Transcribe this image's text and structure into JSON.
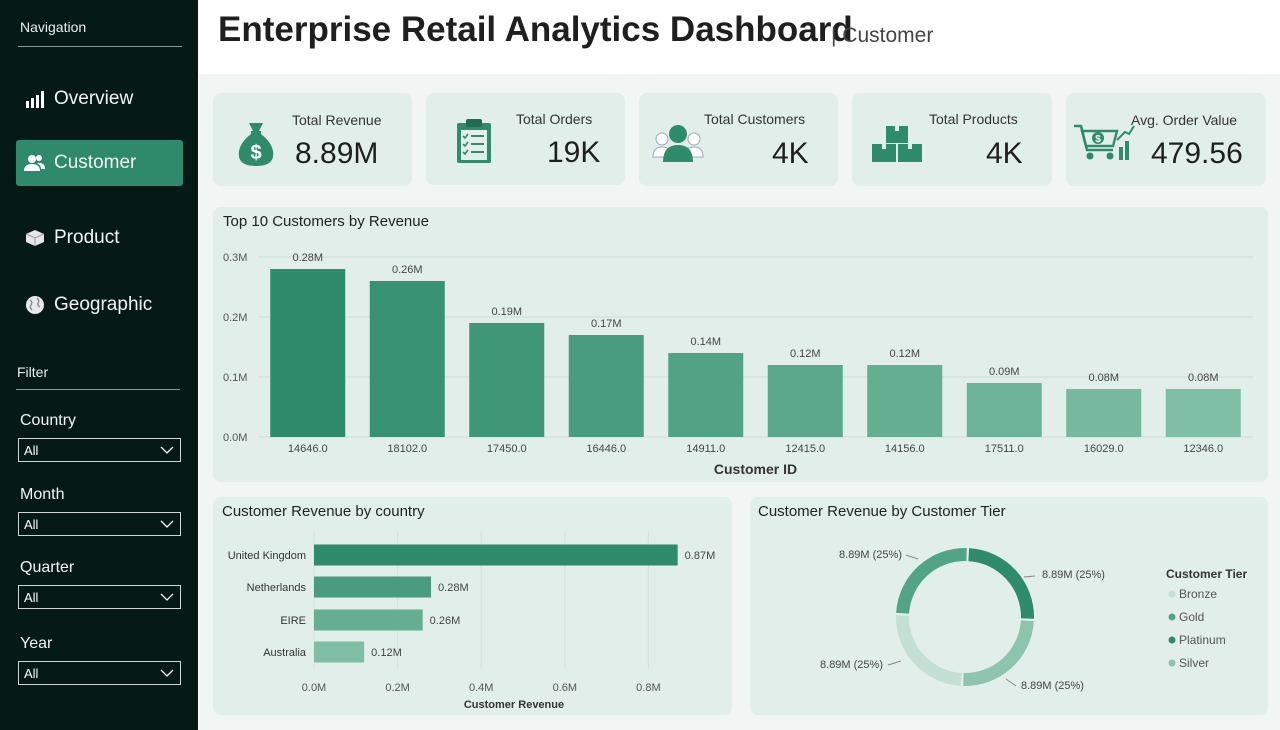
{
  "sidebar": {
    "nav_header": "Navigation",
    "nav_items": [
      {
        "label": "Overview",
        "icon": "bar-chart-icon",
        "active": false
      },
      {
        "label": "Customer",
        "icon": "users-icon",
        "active": true
      },
      {
        "label": "Product",
        "icon": "box-icon",
        "active": false
      },
      {
        "label": "Geographic",
        "icon": "globe-icon",
        "active": false
      }
    ],
    "filter_header": "Filter",
    "slicers": [
      {
        "label": "Country",
        "value": "All"
      },
      {
        "label": "Month",
        "value": "All"
      },
      {
        "label": "Quarter",
        "value": "All"
      },
      {
        "label": "Year",
        "value": "All"
      }
    ]
  },
  "header": {
    "title": "Enterprise Retail Analytics Dashboard",
    "subtitle": "| Customer"
  },
  "kpis": [
    {
      "label": "Total Revenue",
      "value": "8.89M",
      "icon": "money-bag-icon"
    },
    {
      "label": "Total Orders",
      "value": "19K",
      "icon": "clipboard-checklist-icon"
    },
    {
      "label": "Total Customers",
      "value": "4K",
      "icon": "customers-icon"
    },
    {
      "label": "Total Products",
      "value": "4K",
      "icon": "boxes-icon"
    },
    {
      "label": "Avg. Order Value",
      "value": "479.56",
      "icon": "cart-growth-icon"
    }
  ],
  "colors": {
    "sidebar_bg": "#061a15",
    "accent": "#2f8a6c",
    "card_bg": "#e2eeea",
    "dark_green": "#2e8b6b",
    "light_green": "#a8d5c4"
  },
  "chart_data": [
    {
      "type": "bar",
      "title": "Top 10 Customers by Revenue",
      "xlabel": "Customer ID",
      "ylabel": "",
      "categories": [
        "14646.0",
        "18102.0",
        "17450.0",
        "16446.0",
        "14911.0",
        "12415.0",
        "14156.0",
        "17511.0",
        "16029.0",
        "12346.0"
      ],
      "values": [
        0.28,
        0.26,
        0.19,
        0.17,
        0.14,
        0.12,
        0.12,
        0.09,
        0.08,
        0.08
      ],
      "data_labels": [
        "0.28M",
        "0.26M",
        "0.19M",
        "0.17M",
        "0.14M",
        "0.12M",
        "0.12M",
        "0.09M",
        "0.08M",
        "0.08M"
      ],
      "ylim": [
        0,
        0.3
      ],
      "yticks": [
        "0.0M",
        "0.1M",
        "0.2M",
        "0.3M"
      ],
      "grid": true
    },
    {
      "type": "bar",
      "orientation": "horizontal",
      "title": "Customer Revenue by country",
      "xlabel": "Customer Revenue",
      "categories": [
        "United Kingdom",
        "Netherlands",
        "EIRE",
        "Australia"
      ],
      "values": [
        0.87,
        0.28,
        0.26,
        0.12
      ],
      "data_labels": [
        "0.87M",
        "0.28M",
        "0.26M",
        "0.12M"
      ],
      "xlim": [
        0,
        0.9
      ],
      "xticks": [
        "0.0M",
        "0.2M",
        "0.4M",
        "0.6M",
        "0.8M"
      ],
      "grid": true
    },
    {
      "type": "pie",
      "donut": true,
      "title": "Customer Revenue by Customer Tier",
      "legend_title": "Customer Tier",
      "legend_position": "right",
      "series": [
        {
          "name": "Bronze",
          "value": 25,
          "label": "8.89M (25%)",
          "color": "#c4e0d5"
        },
        {
          "name": "Gold",
          "value": 25,
          "label": "8.89M (25%)",
          "color": "#52a487"
        },
        {
          "name": "Platinum",
          "value": 25,
          "label": "8.89M (25%)",
          "color": "#2e8b6b"
        },
        {
          "name": "Silver",
          "value": 25,
          "label": "8.89M (25%)",
          "color": "#8cc4ae"
        }
      ]
    }
  ]
}
